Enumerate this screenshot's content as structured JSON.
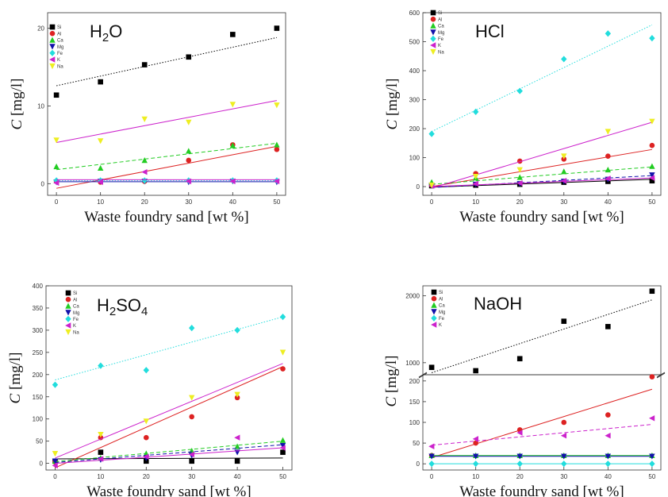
{
  "colors": {
    "Si": "#000000",
    "Al": "#dd2222",
    "Ca": "#22cc22",
    "Mg": "#1111aa",
    "Fe": "#22dddd",
    "K": "#cc22cc",
    "Na": "#eeee22"
  },
  "chart_data": [
    {
      "type": "scatter",
      "title": "H2O",
      "title_main": "H",
      "title_sub": "2",
      "title_rest": "O",
      "xlabel": "Waste foundry sand [wt %]",
      "ylabel_italic": "C",
      "ylabel_rest": " [mg/l]",
      "xlim": [
        -2,
        52
      ],
      "ylim": [
        -1.5,
        22
      ],
      "xticks": [
        "0",
        "10",
        "20",
        "30",
        "40",
        "50"
      ],
      "yticks": [
        0,
        10,
        20
      ],
      "ytick_labels": [
        "0",
        "10",
        "20"
      ],
      "x": [
        0,
        10,
        20,
        30,
        40,
        50
      ],
      "series": [
        {
          "name": "Si",
          "shape": "square",
          "values": [
            11.4,
            13.1,
            15.3,
            16.3,
            19.2,
            20.0
          ],
          "fit": [
            12.6,
            18.8
          ],
          "dash": "dot"
        },
        {
          "name": "Al",
          "shape": "circle",
          "values": [
            0.3,
            0.2,
            0.3,
            3.0,
            5.0,
            4.4
          ],
          "fit": [
            -0.6,
            4.8
          ],
          "dash": "solid"
        },
        {
          "name": "Ca",
          "shape": "triangle",
          "values": [
            2.2,
            2.0,
            3.0,
            4.2,
            4.9,
            5.0
          ],
          "fit": [
            1.8,
            5.2
          ],
          "dash": "dash"
        },
        {
          "name": "Mg",
          "shape": "tri-down",
          "values": [
            0.2,
            0.3,
            0.3,
            0.2,
            0.3,
            0.2
          ],
          "fit": [
            0.25,
            0.25
          ],
          "dash": "solid"
        },
        {
          "name": "Fe",
          "shape": "diamond",
          "values": [
            0.4,
            0.4,
            0.4,
            0.4,
            0.4,
            0.4
          ],
          "fit": [
            0.4,
            0.4
          ],
          "dash": "dot"
        },
        {
          "name": "K",
          "shape": "tri-left",
          "values": [
            0.1,
            0.2,
            1.5,
            0.3,
            0.3,
            0.3
          ],
          "fit": [
            0.5,
            0.5
          ],
          "dash": "solid"
        },
        {
          "name": "Na",
          "shape": "tri-down",
          "values": [
            5.6,
            5.5,
            8.3,
            7.9,
            10.2,
            10.1
          ],
          "fit": [
            5.3,
            10.7
          ],
          "dash": "solid",
          "fit_color": "#cc22cc"
        }
      ],
      "legend_position": "top-left"
    },
    {
      "type": "scatter",
      "title": "HCl",
      "title_main": "HCl",
      "title_sub": "",
      "title_rest": "",
      "xlabel": "Waste foundry sand [wt %]",
      "ylabel_italic": "C",
      "ylabel_rest": " [mg/l]",
      "xlim": [
        -2,
        52
      ],
      "ylim": [
        -30,
        600
      ],
      "xticks": [
        "0",
        "10",
        "20",
        "30",
        "40",
        "50"
      ],
      "yticks": [
        0,
        100,
        200,
        300,
        400,
        500,
        600
      ],
      "ytick_labels": [
        "0",
        "100",
        "200",
        "300",
        "400",
        "500",
        "600"
      ],
      "x": [
        0,
        10,
        20,
        30,
        40,
        50
      ],
      "series": [
        {
          "name": "Si",
          "shape": "square",
          "values": [
            3,
            5,
            8,
            15,
            18,
            20
          ],
          "fit": [
            -2,
            25
          ],
          "dash": "solid"
        },
        {
          "name": "Al",
          "shape": "circle",
          "values": [
            5,
            45,
            88,
            95,
            105,
            142
          ],
          "fit": [
            0,
            128
          ],
          "dash": "solid"
        },
        {
          "name": "Ca",
          "shape": "triangle",
          "values": [
            15,
            30,
            32,
            52,
            58,
            70
          ],
          "fit": [
            8,
            68
          ],
          "dash": "dash"
        },
        {
          "name": "Mg",
          "shape": "tri-down",
          "values": [
            3,
            8,
            10,
            18,
            25,
            40
          ],
          "fit": [
            -3,
            38
          ],
          "dash": "dash"
        },
        {
          "name": "Fe",
          "shape": "diamond",
          "values": [
            182,
            258,
            330,
            440,
            528,
            512
          ],
          "fit": [
            190,
            558
          ],
          "dash": "dot"
        },
        {
          "name": "K",
          "shape": "tri-left",
          "values": [
            3,
            10,
            12,
            20,
            28,
            30
          ],
          "fit": [
            0,
            30
          ],
          "dash": "solid"
        },
        {
          "name": "Na",
          "shape": "tri-down",
          "values": [
            5,
            35,
            58,
            105,
            190,
            225
          ],
          "fit": [
            -5,
            222
          ],
          "dash": "solid",
          "fit_color": "#cc22cc"
        }
      ],
      "legend_position": "top-left"
    },
    {
      "type": "scatter",
      "title": "H2SO4",
      "title_main": "H",
      "title_sub": "2",
      "title_rest": "SO",
      "title_sub2": "4",
      "xlabel": "Waste foundry sand [wt %]",
      "ylabel_italic": "C",
      "ylabel_rest": " [mg/l]",
      "xlim": [
        -2,
        52
      ],
      "ylim": [
        -15,
        400
      ],
      "xticks": [
        "0",
        "10",
        "20",
        "30",
        "40",
        "50"
      ],
      "yticks": [
        0,
        50,
        100,
        150,
        200,
        250,
        300,
        350,
        400
      ],
      "ytick_labels": [
        "0",
        "50",
        "100",
        "150",
        "200",
        "250",
        "300",
        "350",
        "400"
      ],
      "x": [
        0,
        10,
        20,
        30,
        40,
        50
      ],
      "series": [
        {
          "name": "Si",
          "shape": "square",
          "values": [
            5,
            25,
            5,
            5,
            5,
            25
          ],
          "fit": [
            10,
            12
          ],
          "dash": "solid"
        },
        {
          "name": "Al",
          "shape": "circle",
          "values": [
            3,
            58,
            58,
            105,
            148,
            213
          ],
          "fit": [
            -10,
            218
          ],
          "dash": "solid"
        },
        {
          "name": "Ca",
          "shape": "triangle",
          "values": [
            5,
            12,
            22,
            28,
            38,
            52
          ],
          "fit": [
            4,
            50
          ],
          "dash": "dash"
        },
        {
          "name": "Mg",
          "shape": "tri-down",
          "values": [
            5,
            8,
            12,
            18,
            25,
            40
          ],
          "fit": [
            2,
            42
          ],
          "dash": "dash"
        },
        {
          "name": "Fe",
          "shape": "diamond",
          "values": [
            177,
            220,
            210,
            305,
            300,
            330
          ],
          "fit": [
            188,
            330
          ],
          "dash": "dot"
        },
        {
          "name": "K",
          "shape": "tri-left",
          "values": [
            -5,
            10,
            15,
            20,
            58,
            35
          ],
          "fit": [
            0,
            35
          ],
          "dash": "solid"
        },
        {
          "name": "Na",
          "shape": "tri-down",
          "values": [
            22,
            65,
            95,
            148,
            155,
            250
          ],
          "fit": [
            12,
            225
          ],
          "dash": "solid",
          "fit_color": "#cc22cc"
        }
      ],
      "legend_position": "top-center"
    },
    {
      "type": "scatter",
      "title": "NaOH",
      "title_main": "NaOH",
      "title_sub": "",
      "title_rest": "",
      "xlabel": "Waste foundry sand [wt %]",
      "ylabel_italic": "C",
      "ylabel_rest": " [mg/l]",
      "xlim": [
        -2,
        52
      ],
      "broken_axis": true,
      "lower_ylim": [
        -15,
        215
      ],
      "upper_ylim": [
        820,
        2150
      ],
      "lower_yticks": [
        0,
        50,
        100,
        150,
        200
      ],
      "lower_ytick_labels": [
        "0",
        "50",
        "100",
        "150",
        "200"
      ],
      "upper_yticks": [
        1000,
        2000
      ],
      "upper_ytick_labels": [
        "1000",
        "2000"
      ],
      "xticks": [
        "0",
        "10",
        "20",
        "30",
        "40",
        "50"
      ],
      "x": [
        0,
        10,
        20,
        30,
        40,
        50
      ],
      "series": [
        {
          "name": "Si",
          "shape": "square",
          "values": [
            930,
            880,
            1060,
            1620,
            1540,
            2070
          ],
          "fit": [
            850,
            1940
          ],
          "dash": "dot",
          "axis": "upper"
        },
        {
          "name": "Al",
          "shape": "circle",
          "values": [
            20,
            50,
            82,
            100,
            118,
            210
          ],
          "fit": [
            15,
            180
          ],
          "dash": "solid",
          "axis": "lower"
        },
        {
          "name": "Ca",
          "shape": "triangle",
          "values": [
            20,
            20,
            20,
            20,
            20,
            20
          ],
          "fit": [
            20,
            20
          ],
          "dash": "solid",
          "axis": "lower"
        },
        {
          "name": "Mg",
          "shape": "tri-down",
          "values": [
            18,
            18,
            18,
            18,
            18,
            18
          ],
          "fit": [
            18,
            18
          ],
          "dash": "solid",
          "axis": "lower"
        },
        {
          "name": "Fe",
          "shape": "diamond",
          "values": [
            0,
            0,
            0,
            0,
            0,
            0
          ],
          "fit": [
            0,
            0
          ],
          "dash": "solid",
          "axis": "lower"
        },
        {
          "name": "K",
          "shape": "tri-left",
          "values": [
            42,
            60,
            75,
            68,
            68,
            110
          ],
          "fit": [
            45,
            95
          ],
          "dash": "dash",
          "axis": "lower"
        }
      ],
      "legend_position": "top-left"
    }
  ],
  "legend_labels": {
    "h2o": [
      "Si",
      "Al",
      "Ca",
      "Mg",
      "Fe",
      "K",
      "Na"
    ],
    "hcl": [
      "Si",
      "Al",
      "Ca",
      "Mg",
      "Fe",
      "K",
      "Na"
    ],
    "h2so4": [
      "Si",
      "Al",
      "Ca",
      "Mg",
      "Fe",
      "K",
      "Na"
    ],
    "naoh": [
      "Si",
      "Al",
      "Ca",
      "Mg",
      "Fe",
      "K"
    ]
  }
}
